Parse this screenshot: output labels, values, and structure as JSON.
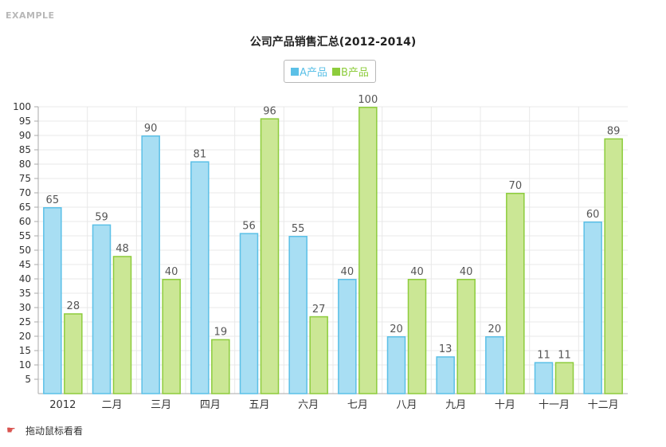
{
  "header": {
    "example_label": "EXAMPLE"
  },
  "footer": {
    "hint_text": "拖动鼠标看看",
    "hint_icon": "pointing-hand-icon"
  },
  "colors": {
    "series_a_fill": "#a8def3",
    "series_a_stroke": "#5bc0e7",
    "series_b_fill": "#cbe795",
    "series_b_stroke": "#8dcc3c",
    "grid": "#e8e8e8",
    "axis": "#aaaaaa"
  },
  "chart_data": {
    "type": "bar",
    "title": "公司产品销售汇总(2012-2014)",
    "xlabel": "",
    "ylabel": "",
    "categories": [
      "2012",
      "二月",
      "三月",
      "四月",
      "五月",
      "六月",
      "七月",
      "八月",
      "九月",
      "十月",
      "十一月",
      "十二月"
    ],
    "series": [
      {
        "name": "A产品",
        "values": [
          65,
          59,
          90,
          81,
          56,
          55,
          40,
          20,
          13,
          20,
          11,
          60
        ]
      },
      {
        "name": "B产品",
        "values": [
          28,
          48,
          40,
          19,
          96,
          27,
          100,
          40,
          40,
          70,
          11,
          89
        ]
      }
    ],
    "ylim": [
      0,
      100
    ],
    "ytick_step": 5,
    "grid": true,
    "legend_position": "top-center",
    "data_labels": true
  }
}
